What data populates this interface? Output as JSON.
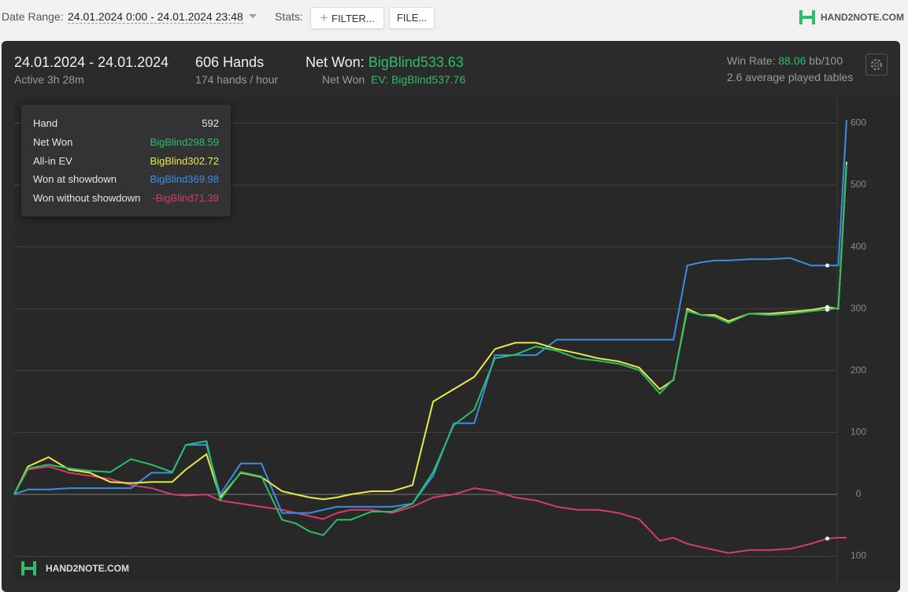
{
  "toolbar": {
    "date_range_label": "Date Range:",
    "date_range": "24.01.2024 0:00 - 24.01.2024 23:48",
    "stats_label": "Stats:",
    "filter_button": "FILTER...",
    "file_button": "FILE...",
    "logo": "HAND2NOTE.COM"
  },
  "summary": {
    "dates": "24.01.2024 - 24.01.2024",
    "active": "Active 3h 28m",
    "hands": "606 Hands",
    "hands_rate": "174 hands / hour",
    "net_won_label": "Net Won:",
    "net_won": "BigBlind533.63",
    "net_won_ev_label": "Net Won",
    "ev_label": "EV:",
    "net_won_ev": "BigBlind537.76",
    "win_rate_label": "Win Rate:",
    "win_rate": "88.06",
    "win_rate_unit": "bb/100",
    "tables": "2.6 average played tables"
  },
  "tooltip": {
    "hand_label": "Hand",
    "values": [
      "BigBlind298.59",
      "BigBlind302.72",
      "BigBlind369.98",
      "-BigBlind71.39"
    ]
  },
  "watermark": "HAND2NOTE.COM",
  "chart_data": {
    "type": "line",
    "x": [
      0,
      10,
      25,
      40,
      55,
      70,
      85,
      100,
      115,
      125,
      140,
      150,
      165,
      180,
      195,
      205,
      215,
      225,
      235,
      245,
      260,
      275,
      290,
      305,
      320,
      335,
      350,
      365,
      380,
      395,
      410,
      425,
      440,
      455,
      470,
      480,
      490,
      500,
      510,
      520,
      535,
      550,
      565,
      580,
      592,
      600,
      606
    ],
    "xlim": [
      0,
      606
    ],
    "ylim": [
      -140,
      640
    ],
    "yticks": [
      {
        "value": -100,
        "label": "100"
      },
      0,
      100,
      200,
      300,
      400,
      500,
      600
    ],
    "grid": true,
    "series": [
      {
        "name": "Net Won",
        "color": "#2ebd6b",
        "values": [
          0,
          42,
          48,
          42,
          38,
          36,
          57,
          48,
          36,
          80,
          86,
          -9,
          36,
          29,
          -41,
          -47,
          -60,
          -66,
          -41,
          -41,
          -28,
          -28,
          -15,
          36,
          112,
          137,
          220,
          226,
          239,
          232,
          220,
          216,
          211,
          201,
          163,
          186,
          296,
          290,
          287,
          277,
          292,
          290,
          292,
          296,
          298.59,
          301,
          533.63
        ]
      },
      {
        "name": "All-in EV",
        "color": "#e8e84a",
        "values": [
          0,
          45,
          60,
          40,
          35,
          20,
          18,
          20,
          20,
          40,
          65,
          -5,
          35,
          28,
          5,
          0,
          -5,
          -8,
          -5,
          0,
          5,
          5,
          15,
          150,
          170,
          190,
          235,
          245,
          245,
          235,
          228,
          220,
          215,
          205,
          170,
          185,
          300,
          290,
          290,
          280,
          292,
          292,
          295,
          298,
          302.72,
          300,
          537.76
        ]
      },
      {
        "name": "Won at showdown",
        "color": "#3a8ee6",
        "values": [
          0,
          8,
          8,
          10,
          10,
          10,
          10,
          35,
          35,
          80,
          80,
          0,
          50,
          50,
          -30,
          -30,
          -30,
          -25,
          -20,
          -20,
          -20,
          -20,
          -15,
          30,
          115,
          115,
          225,
          225,
          225,
          250,
          250,
          250,
          250,
          250,
          250,
          250,
          370,
          375,
          378,
          378,
          380,
          380,
          382,
          370,
          369.98,
          370,
          605
        ]
      },
      {
        "name": "Won without showdown",
        "color": "#d63c6b",
        "values": [
          0,
          40,
          45,
          35,
          30,
          25,
          15,
          10,
          0,
          -2,
          0,
          -10,
          -15,
          -20,
          -25,
          -30,
          -35,
          -40,
          -30,
          -25,
          -25,
          -30,
          -20,
          -5,
          0,
          10,
          5,
          -5,
          -10,
          -20,
          -25,
          -25,
          -30,
          -40,
          -75,
          -70,
          -80,
          -85,
          -90,
          -95,
          -90,
          -90,
          -88,
          -80,
          -71.39,
          -70,
          -70
        ]
      }
    ]
  }
}
